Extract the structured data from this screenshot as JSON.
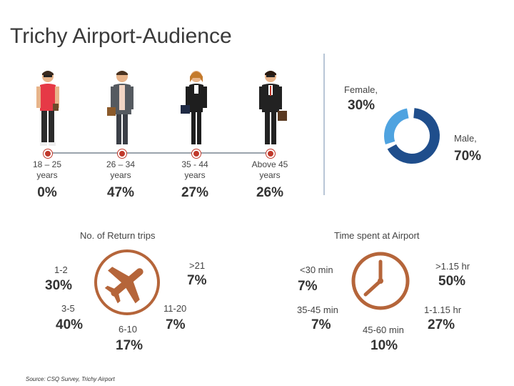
{
  "title": "Trichy Airport-Audience",
  "gender": {
    "female_label": "Female,",
    "female_value": "30%",
    "male_label": "Male,",
    "male_value": "70%",
    "female_color": "#4fa3e0",
    "male_color": "#1f4e8c"
  },
  "age_groups": [
    {
      "range_line1": "18 – 25",
      "range_line2": "years",
      "value": "0%"
    },
    {
      "range_line1": "26 – 34",
      "range_line2": "years",
      "value": "47%"
    },
    {
      "range_line1": "35 - 44",
      "range_line2": "years",
      "value": "27%"
    },
    {
      "range_line1": "Above 45",
      "range_line2": "years",
      "value": "26%"
    }
  ],
  "return_trips": {
    "title": "No. of Return trips",
    "icon": "airplane-icon",
    "icon_color": "#b5653a",
    "items": [
      {
        "label": "1-2",
        "value": "30%"
      },
      {
        "label": "3-5",
        "value": "40%"
      },
      {
        "label": "6-10",
        "value": "17%"
      },
      {
        "label": "11-20",
        "value": "7%"
      },
      {
        "label": ">21",
        "value": "7%"
      }
    ]
  },
  "time_spent": {
    "title": "Time spent at Airport",
    "icon": "clock-icon",
    "icon_color": "#b5653a",
    "items": [
      {
        "label": "<30 min",
        "value": "7%"
      },
      {
        "label": "35-45 min",
        "value": "7%"
      },
      {
        "label": "45-60 min",
        "value": "10%"
      },
      {
        "label": "1-1.15 hr",
        "value": "27%"
      },
      {
        "label": ">1.15 hr",
        "value": "50%"
      }
    ]
  },
  "source": "Source: CSQ Survey, Trichy Airport"
}
